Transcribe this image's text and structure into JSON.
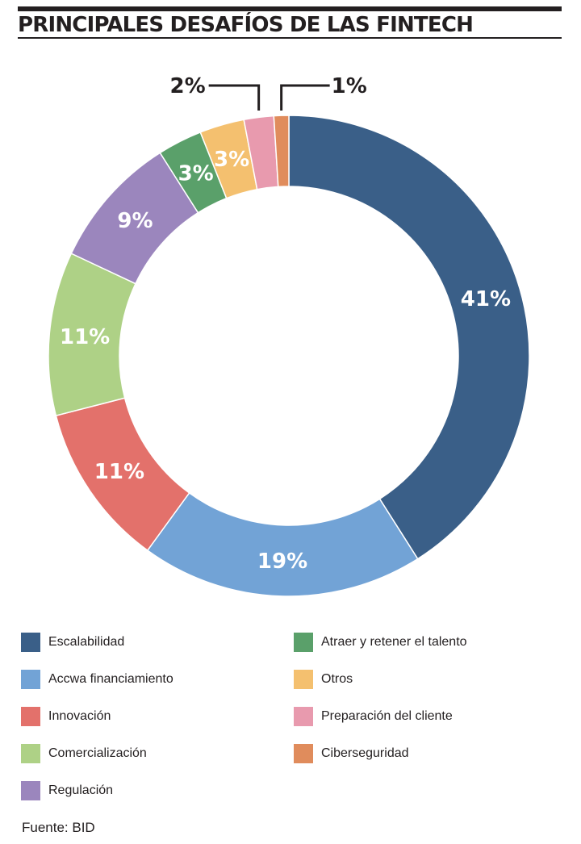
{
  "title": "PRINCIPALES DESAFÍOS DE LAS FINTECH",
  "source": "Fuente: BID",
  "chart_data": {
    "type": "pie",
    "donut": true,
    "categories": [
      "Escalabilidad",
      "Accwa financiamiento",
      "Innovación",
      "Comercialización",
      "Regulación",
      "Atraer y retener el talento",
      "Otros",
      "Preparación del cliente",
      "Ciberseguridad"
    ],
    "values": [
      41,
      19,
      11,
      11,
      9,
      3,
      3,
      2,
      1
    ],
    "data_labels": [
      "41%",
      "19%",
      "11%",
      "11%",
      "9%",
      "3%",
      "3%",
      "2%",
      "1%"
    ],
    "colors": [
      "#3a5f88",
      "#72a3d6",
      "#e3716b",
      "#aed186",
      "#9b86bd",
      "#5aa06a",
      "#f4c06f",
      "#e89aae",
      "#e08c5c"
    ],
    "legend_position": "bottom"
  }
}
